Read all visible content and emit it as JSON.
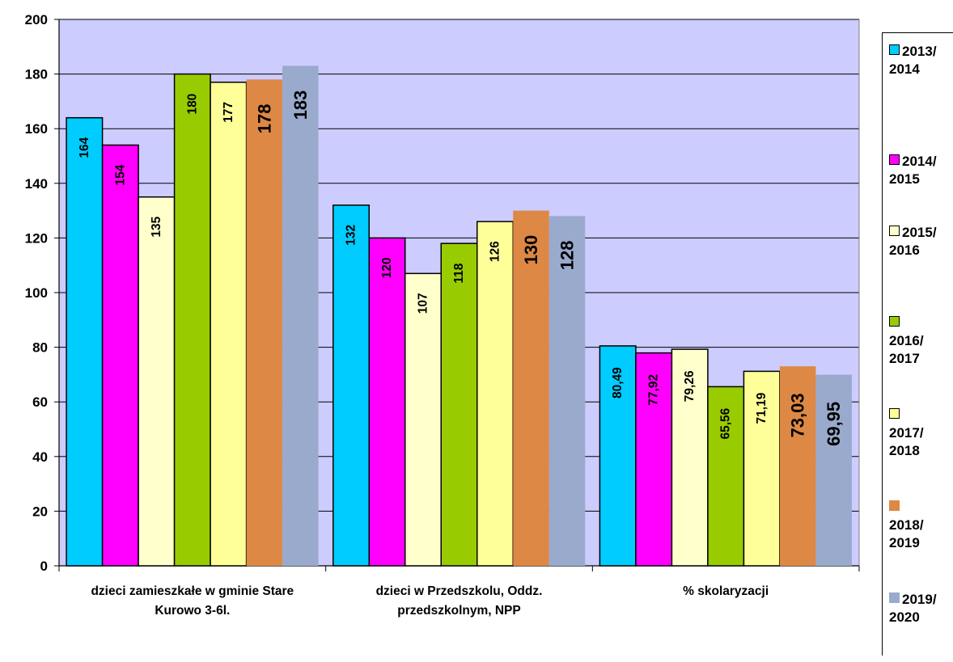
{
  "chart_data": {
    "type": "bar",
    "title": "",
    "xlabel": "",
    "ylabel": "",
    "ylim": [
      0,
      200
    ],
    "yticks": [
      0,
      20,
      40,
      60,
      80,
      100,
      120,
      140,
      160,
      180,
      200
    ],
    "grid": true,
    "legend_position": "right",
    "categories": [
      "dzieci zamieszkałe w gminie Stare Kurowo 3-6l.",
      "dzieci w Przedszkolu, Oddz. przedszkolnym, NPP",
      "% skolaryzacji"
    ],
    "category_lines": [
      [
        "dzieci zamieszkałe w gminie Stare",
        "Kurowo 3-6l."
      ],
      [
        "dzieci w Przedszkolu, Oddz.",
        "przedszkolnym, NPP"
      ],
      [
        "% skolaryzacji"
      ]
    ],
    "series": [
      {
        "name": "2013/ 2014",
        "legend_lines": [
          "2013/",
          "2014"
        ],
        "color": "#00CCFF",
        "values": [
          164,
          132,
          80.49
        ],
        "labels": [
          "164",
          "132",
          "80,49"
        ]
      },
      {
        "name": "2014/ 2015",
        "legend_lines": [
          "2014/",
          "2015"
        ],
        "color": "#FF00FF",
        "values": [
          154,
          120,
          77.92
        ],
        "labels": [
          "154",
          "120",
          "77,92"
        ]
      },
      {
        "name": "2015/ 2016",
        "legend_lines": [
          "2015/",
          "2016"
        ],
        "color": "#FFFFCC",
        "values": [
          135,
          107,
          79.26
        ],
        "labels": [
          "135",
          "107",
          "79,26"
        ]
      },
      {
        "name": "2016/ 2017",
        "legend_lines": [
          "",
          "2016/",
          "2017"
        ],
        "color": "#99CC00",
        "values": [
          180,
          118,
          65.56
        ],
        "labels": [
          "180",
          "118",
          "65,56"
        ]
      },
      {
        "name": "2017/ 2018",
        "legend_lines": [
          "",
          "2017/",
          "2018"
        ],
        "color": "#FFFF99",
        "values": [
          177,
          126,
          71.19
        ],
        "labels": [
          "177",
          "126",
          "71,19"
        ]
      },
      {
        "name": "2018/ 2019",
        "legend_lines": [
          "",
          "2018/",
          "2019"
        ],
        "color": "#DD8844",
        "values": [
          178,
          130,
          73.03
        ],
        "labels": [
          "178",
          "130",
          "73,03"
        ]
      },
      {
        "name": "2019/ 2020",
        "legend_lines": [
          "2019/",
          "2020"
        ],
        "color": "#99AACC",
        "values": [
          183,
          128,
          69.95
        ],
        "labels": [
          "183",
          "128",
          "69,95"
        ]
      }
    ]
  }
}
